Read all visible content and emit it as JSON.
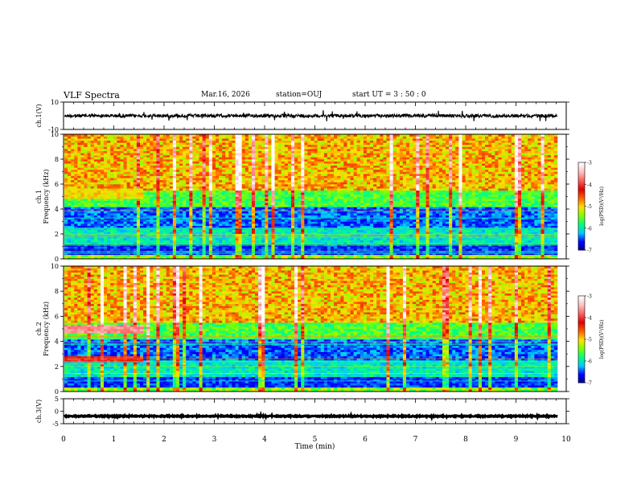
{
  "header": {
    "title": "VLF Spectra",
    "date": "Mar.16, 2026",
    "station": "station=OUJ",
    "start": "start  UT =   3  : 50 : 0"
  },
  "colors": {
    "colormap": [
      "#00008b",
      "#0000ff",
      "#00c8ff",
      "#00ff80",
      "#80ff00",
      "#ffe000",
      "#ff6000",
      "#e00000",
      "#ff6060",
      "#ffc0c0",
      "#ffffff"
    ],
    "trace": "#000000"
  },
  "chart_data": [
    {
      "type": "line",
      "name": "ch1-waveform",
      "ylabel": "ch.1(V)",
      "ylim": [
        -10,
        10
      ],
      "yticks": [
        "10",
        "-10"
      ],
      "baseline": 0
    },
    {
      "type": "heatmap",
      "name": "ch1-spectrogram",
      "ylabel": [
        "ch.1",
        "Frequency (kHz)"
      ],
      "ylim": [
        0,
        10
      ],
      "yticks": [
        "0",
        "2",
        "4",
        "6",
        "8",
        "10"
      ],
      "colorbar": {
        "label": "log(PSD)(V²/Hz)",
        "ticks": [
          "-3",
          "-4",
          "-5",
          "-6",
          "-7"
        ],
        "range": [
          -7,
          -3
        ]
      }
    },
    {
      "type": "heatmap",
      "name": "ch2-spectrogram",
      "ylabel": [
        "ch.2",
        "Frequency (kHz)"
      ],
      "ylim": [
        0,
        10
      ],
      "yticks": [
        "0",
        "2",
        "4",
        "6",
        "8",
        "10"
      ],
      "colorbar": {
        "label": "log(PSD)(V²/Hz)",
        "ticks": [
          "-3",
          "-4",
          "-5",
          "-6",
          "-7"
        ],
        "range": [
          -7,
          -3
        ]
      }
    },
    {
      "type": "line",
      "name": "ch3-waveform",
      "ylabel": "ch.3(V)",
      "ylim": [
        -5,
        5
      ],
      "yticks": [
        "5",
        "0",
        "-5"
      ],
      "baseline": -2
    }
  ],
  "xaxis": {
    "label": "Time (min)",
    "xlim": [
      0,
      10
    ],
    "ticks": [
      "0",
      "1",
      "2",
      "3",
      "4",
      "5",
      "6",
      "7",
      "8",
      "9",
      "10"
    ]
  }
}
